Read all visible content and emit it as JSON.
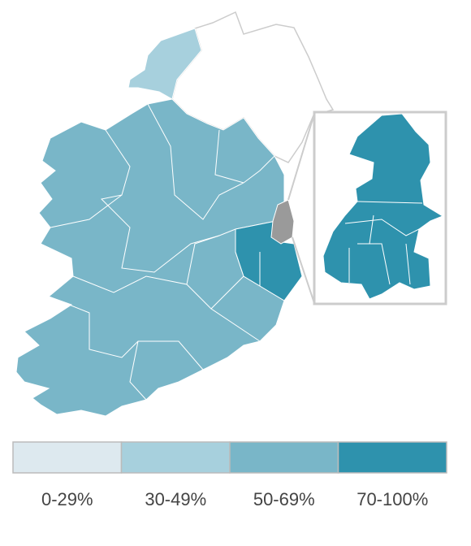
{
  "legend": {
    "items": [
      {
        "label": "0-29%",
        "color": "#dde9ef"
      },
      {
        "label": "30-49%",
        "color": "#a7d0dd"
      },
      {
        "label": "50-69%",
        "color": "#79b6c8"
      },
      {
        "label": "70-100%",
        "color": "#2e92ad"
      }
    ]
  }
}
